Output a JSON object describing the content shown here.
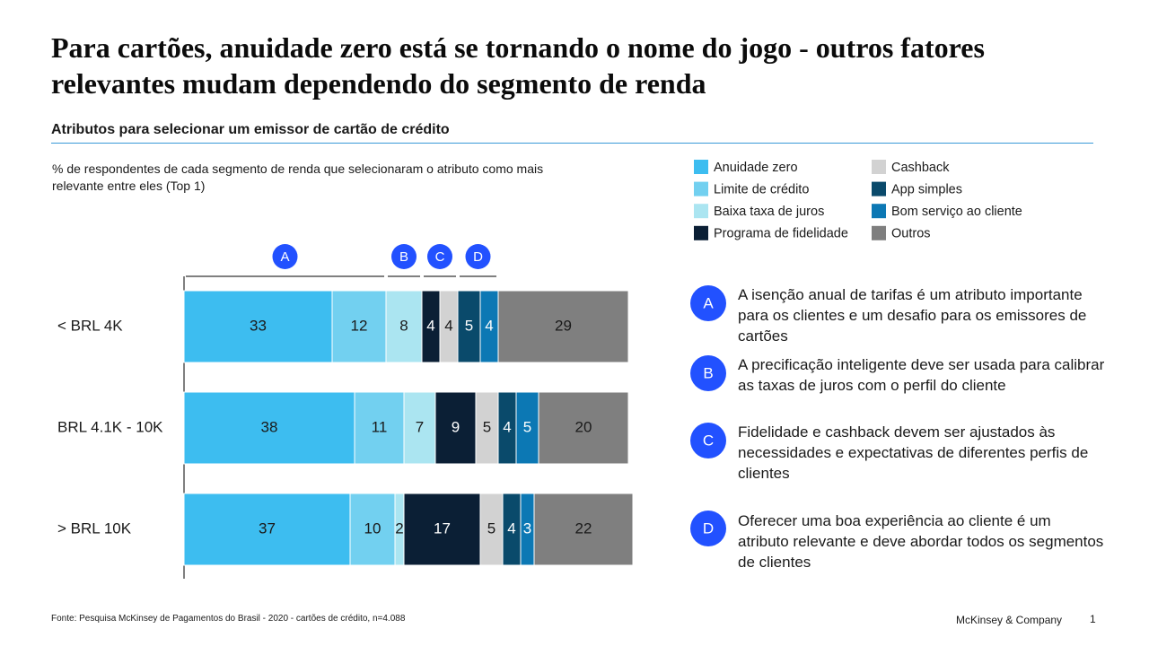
{
  "chart_data": {
    "type": "bar",
    "orientation": "horizontal",
    "stacked": true,
    "title": "Para cartões, anuidade zero está se tornando o nome do jogo - outros fatores relevantes mudam dependendo do segmento de renda",
    "subtitle": "Atributos para selecionar um emissor de cartão de crédito",
    "note": "% de respondentes de cada segmento de renda que selecionaram o atributo como mais relevante entre eles (Top 1)",
    "categories": [
      "< BRL 4K",
      "BRL 4.1K - 10K",
      "> BRL 10K"
    ],
    "xlim": [
      0,
      100
    ],
    "series": [
      {
        "name": "Anuidade zero",
        "color": "#3dbdf0",
        "text_color": "#1a1a1a",
        "values": [
          33,
          38,
          37
        ]
      },
      {
        "name": "Limite de crédito",
        "color": "#72d0f0",
        "text_color": "#1a1a1a",
        "values": [
          12,
          11,
          10
        ]
      },
      {
        "name": "Baixa taxa de juros",
        "color": "#abe5f1",
        "text_color": "#1a1a1a",
        "values": [
          8,
          7,
          2
        ]
      },
      {
        "name": "Programa de fidelidade",
        "color": "#0b1f35",
        "text_color": "#ffffff",
        "values": [
          4,
          9,
          17
        ]
      },
      {
        "name": "Cashback",
        "color": "#d2d2d2",
        "text_color": "#1a1a1a",
        "values": [
          4,
          5,
          5
        ]
      },
      {
        "name": "App simples",
        "color": "#0a4a6b",
        "text_color": "#ffffff",
        "values": [
          5,
          4,
          4
        ]
      },
      {
        "name": "Bom serviço ao cliente",
        "color": "#0c78b4",
        "text_color": "#ffffff",
        "values": [
          4,
          5,
          3
        ]
      },
      {
        "name": "Outros",
        "color": "#7f7f7f",
        "text_color": "#1a1a1a",
        "values": [
          29,
          20,
          22
        ]
      }
    ],
    "groups": [
      {
        "label": "A",
        "series": [
          0,
          1
        ]
      },
      {
        "label": "B",
        "series": [
          2
        ]
      },
      {
        "label": "C",
        "series": [
          3,
          4
        ]
      },
      {
        "label": "D",
        "series": [
          5,
          6
        ]
      }
    ],
    "group_color": "#2251ff",
    "annotations": [
      {
        "label": "A",
        "text": "A isenção anual de tarifas é um atributo importante para os clientes e um desafio para os emissores de cartões"
      },
      {
        "label": "B",
        "text": "A precificação inteligente deve ser usada para calibrar as taxas de juros com o perfil do cliente"
      },
      {
        "label": "C",
        "text": "Fidelidade e cashback devem ser ajustados às necessidades e expectativas de diferentes perfis de clientes"
      },
      {
        "label": "D",
        "text": "Oferecer uma boa experiência ao cliente é um atributo relevante e deve abordar todos os segmentos de clientes"
      }
    ],
    "source": "Fonte: Pesquisa McKinsey de Pagamentos do Brasil - 2020 - cartões de crédito, n=4.088",
    "brand": "McKinsey & Company",
    "page_number": "1"
  }
}
